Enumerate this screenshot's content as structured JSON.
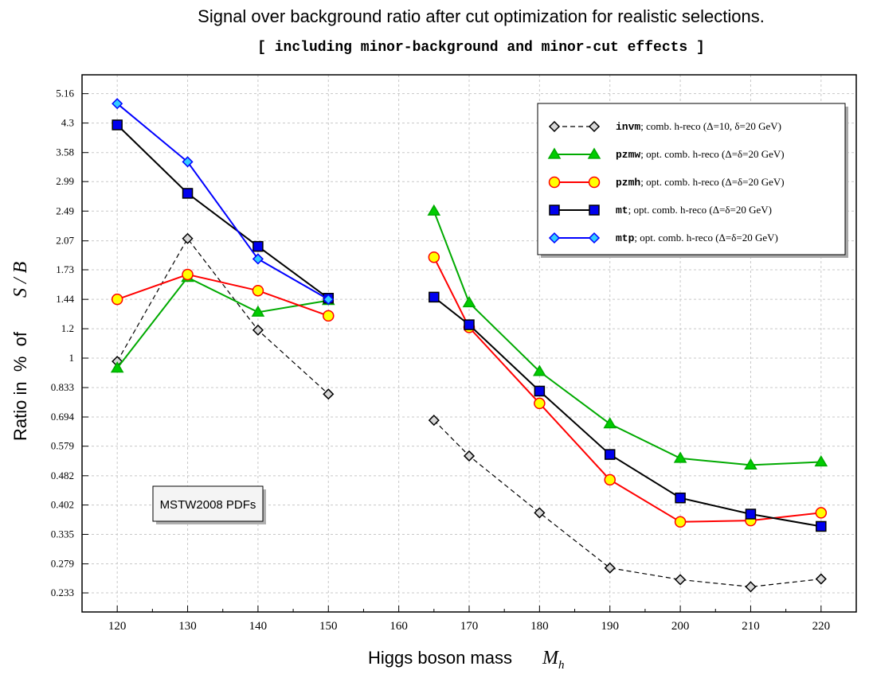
{
  "chart_data": {
    "type": "line",
    "title": "Signal over background ratio after cut optimization for realistic selections.",
    "subtitle": "[ including minor-background and minor-cut effects ]",
    "xlabel": "Higgs boson mass",
    "xlabel_math": "M",
    "xlabel_sub": "h",
    "ylabel": "Ratio in  %  of",
    "ylabel_math": "S / B",
    "xlim": [
      115,
      225
    ],
    "xticks": [
      120,
      130,
      140,
      150,
      160,
      170,
      180,
      190,
      200,
      210,
      220
    ],
    "ylim": [
      0.207,
      5.8
    ],
    "yscale": "log",
    "yticks": [
      0.233,
      0.279,
      0.335,
      0.402,
      0.482,
      0.579,
      0.694,
      0.833,
      1,
      1.2,
      1.44,
      1.73,
      2.07,
      2.49,
      2.99,
      3.58,
      4.3,
      5.16
    ],
    "ytick_labels": [
      "0.233",
      "0.279",
      "0.335",
      "0.402",
      "0.482",
      "0.579",
      "0.694",
      "0.833",
      "1",
      "1.2",
      "1.44",
      "1.73",
      "2.07",
      "2.49",
      "2.99",
      "3.58",
      "4.3",
      "5.16"
    ],
    "grid": true,
    "legend_position": "top-right",
    "annotation": "MSTW2008 PDFs",
    "series": [
      {
        "name": "invm",
        "desc": "; comb. h-reco (Δ=10, δ=20 GeV)",
        "color": "#000000",
        "marker": "diamond",
        "marker_fill": "#d8d8d8",
        "dashed": true,
        "segments": [
          [
            [
              120,
              0.98
            ],
            [
              130,
              2.1
            ],
            [
              140,
              1.19
            ],
            [
              150,
              0.8
            ]
          ],
          [
            [
              165,
              0.68
            ],
            [
              170,
              0.545
            ],
            [
              180,
              0.383
            ],
            [
              190,
              0.272
            ],
            [
              200,
              0.253
            ],
            [
              210,
              0.242
            ],
            [
              220,
              0.254
            ]
          ]
        ]
      },
      {
        "name": "pzmw",
        "desc": "; opt. comb. h-reco (Δ=δ=20 GeV)",
        "color": "#00aa00",
        "marker": "triangle",
        "marker_fill": "#00cc00",
        "dashed": false,
        "segments": [
          [
            [
              120,
              0.94
            ],
            [
              130,
              1.65
            ],
            [
              140,
              1.33
            ],
            [
              150,
              1.43
            ]
          ],
          [
            [
              165,
              2.49
            ],
            [
              170,
              1.41
            ],
            [
              180,
              0.92
            ],
            [
              190,
              0.665
            ],
            [
              200,
              0.537
            ],
            [
              210,
              0.515
            ],
            [
              220,
              0.525
            ]
          ]
        ]
      },
      {
        "name": "pzmh",
        "desc": "; opt. comb. h-reco (Δ=δ=20 GeV)",
        "color": "#ff0000",
        "marker": "circle",
        "marker_fill": "#ffff00",
        "dashed": false,
        "segments": [
          [
            [
              120,
              1.44
            ],
            [
              130,
              1.68
            ],
            [
              140,
              1.52
            ],
            [
              150,
              1.3
            ]
          ],
          [
            [
              165,
              1.87
            ],
            [
              170,
              1.21
            ],
            [
              180,
              0.755
            ],
            [
              190,
              0.47
            ],
            [
              200,
              0.362
            ],
            [
              210,
              0.365
            ],
            [
              220,
              0.383
            ]
          ]
        ]
      },
      {
        "name": "mt",
        "desc": "; opt. comb. h-reco (Δ=δ=20 GeV)",
        "color": "#000000",
        "marker": "square",
        "marker_fill": "#0000ee",
        "dashed": false,
        "segments": [
          [
            [
              120,
              4.25
            ],
            [
              130,
              2.78
            ],
            [
              140,
              2.0
            ],
            [
              150,
              1.45
            ]
          ],
          [
            [
              165,
              1.46
            ],
            [
              170,
              1.23
            ],
            [
              180,
              0.815
            ],
            [
              190,
              0.55
            ],
            [
              200,
              0.42
            ],
            [
              210,
              0.38
            ],
            [
              220,
              0.352
            ]
          ]
        ]
      },
      {
        "name": "mtp",
        "desc": "; opt. comb. h-reco (Δ=δ=20 GeV)",
        "color": "#0000ff",
        "marker": "diamond",
        "marker_fill": "#33ccff",
        "dashed": false,
        "segments": [
          [
            [
              120,
              4.85
            ],
            [
              130,
              3.38
            ],
            [
              140,
              1.85
            ],
            [
              150,
              1.44
            ]
          ]
        ]
      }
    ]
  }
}
